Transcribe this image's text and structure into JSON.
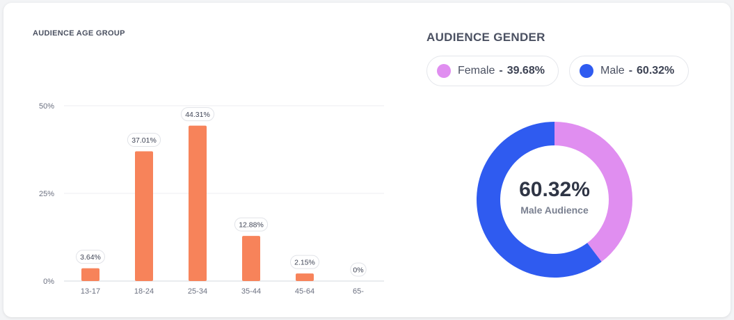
{
  "age_card": {
    "title": "AUDIENCE AGE GROUP"
  },
  "gender_card": {
    "title": "AUDIENCE GENDER",
    "legend": [
      {
        "label": "Female",
        "separator": "-",
        "value": "39.68%",
        "color": "#e08ef0"
      },
      {
        "label": "Male",
        "separator": "-",
        "value": "60.32%",
        "color": "#2f5bf0"
      }
    ],
    "center_value": "60.32%",
    "center_label": "Male Audience"
  },
  "chart_data": [
    {
      "type": "bar",
      "title": "AUDIENCE AGE GROUP",
      "categories": [
        "13-17",
        "18-24",
        "25-34",
        "35-44",
        "45-64",
        "65-"
      ],
      "values": [
        3.64,
        37.01,
        44.31,
        12.88,
        2.15,
        0
      ],
      "data_labels": [
        "3.64%",
        "37.01%",
        "44.31%",
        "12.88%",
        "2.15%",
        "0%"
      ],
      "y_ticks": [
        0,
        25,
        50
      ],
      "y_tick_labels": [
        "0%",
        "25%",
        "50%"
      ],
      "ylim": [
        0,
        50
      ],
      "grid": true,
      "bar_color": "#f7835a"
    },
    {
      "type": "pie",
      "title": "AUDIENCE GENDER",
      "style": "donut",
      "labels": [
        "Female",
        "Male"
      ],
      "values": [
        39.68,
        60.32
      ],
      "colors": [
        "#e08ef0",
        "#2f5bf0"
      ]
    }
  ]
}
